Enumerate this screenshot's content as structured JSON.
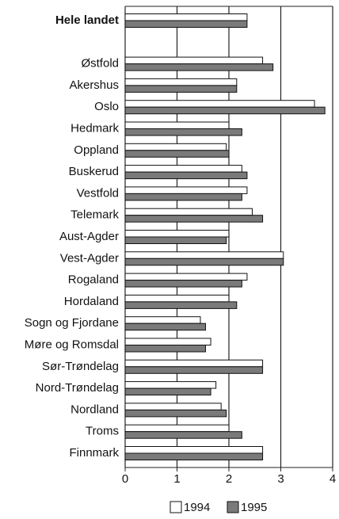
{
  "chart_data": {
    "type": "bar",
    "orientation": "horizontal",
    "categories": [
      "Hele landet",
      null,
      "Østfold",
      "Akershus",
      "Oslo",
      "Hedmark",
      "Oppland",
      "Buskerud",
      "Vestfold",
      "Telemark",
      "Aust-Agder",
      "Vest-Agder",
      "Rogaland",
      "Hordaland",
      "Sogn og Fjordane",
      "Møre og Romsdal",
      "Sør-Trøndelag",
      "Nord-Trøndelag",
      "Nordland",
      "Troms",
      "Finnmark"
    ],
    "series": [
      {
        "name": "1994",
        "color": "#ffffff",
        "values": [
          2.35,
          null,
          2.65,
          2.15,
          3.65,
          2.0,
          1.95,
          2.25,
          2.35,
          2.45,
          2.0,
          3.05,
          2.35,
          2.0,
          1.45,
          1.65,
          2.65,
          1.75,
          1.85,
          2.0,
          2.65
        ]
      },
      {
        "name": "1995",
        "color": "#7a7a7a",
        "values": [
          2.35,
          null,
          2.85,
          2.15,
          3.85,
          2.25,
          2.0,
          2.35,
          2.25,
          2.65,
          1.95,
          3.05,
          2.25,
          2.15,
          1.55,
          1.55,
          2.65,
          1.65,
          1.95,
          2.25,
          2.65
        ]
      }
    ],
    "xlim": [
      0,
      4
    ],
    "xticks": [
      0,
      1,
      2,
      3,
      4
    ],
    "grid": true,
    "legend": "bottom"
  }
}
